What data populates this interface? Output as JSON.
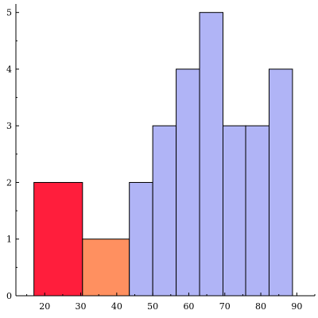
{
  "chart_data": {
    "type": "bar",
    "subtype": "histogram",
    "title": "",
    "xlabel": "",
    "ylabel": "",
    "xlim": [
      12,
      95
    ],
    "ylim": [
      0,
      5.15
    ],
    "x_ticks": [
      20,
      30,
      40,
      50,
      60,
      70,
      80,
      90
    ],
    "y_ticks": [
      0,
      1,
      2,
      3,
      4,
      5
    ],
    "x_tick_labels": [
      "20",
      "30",
      "40",
      "50",
      "60",
      "70",
      "80",
      "90"
    ],
    "y_tick_labels": [
      "0",
      "1",
      "2",
      "3",
      "4",
      "5"
    ],
    "grid": false,
    "legend": "none",
    "bins": [
      {
        "x0": 17.0,
        "x1": 30.5,
        "value": 2,
        "color": "#ff1e3c"
      },
      {
        "x0": 30.5,
        "x1": 43.5,
        "value": 1,
        "color": "#ff9060"
      },
      {
        "x0": 43.5,
        "x1": 50.0,
        "value": 2,
        "color": "#b0b4f6"
      },
      {
        "x0": 50.0,
        "x1": 56.5,
        "value": 3,
        "color": "#b0b4f6"
      },
      {
        "x0": 56.5,
        "x1": 63.0,
        "value": 4,
        "color": "#b0b4f6"
      },
      {
        "x0": 63.0,
        "x1": 69.5,
        "value": 5,
        "color": "#b0b4f6"
      },
      {
        "x0": 69.5,
        "x1": 75.8,
        "value": 3,
        "color": "#b0b4f6"
      },
      {
        "x0": 75.8,
        "x1": 82.3,
        "value": 3,
        "color": "#b0b4f6"
      },
      {
        "x0": 82.3,
        "x1": 88.8,
        "value": 4,
        "color": "#b0b4f6"
      }
    ]
  }
}
